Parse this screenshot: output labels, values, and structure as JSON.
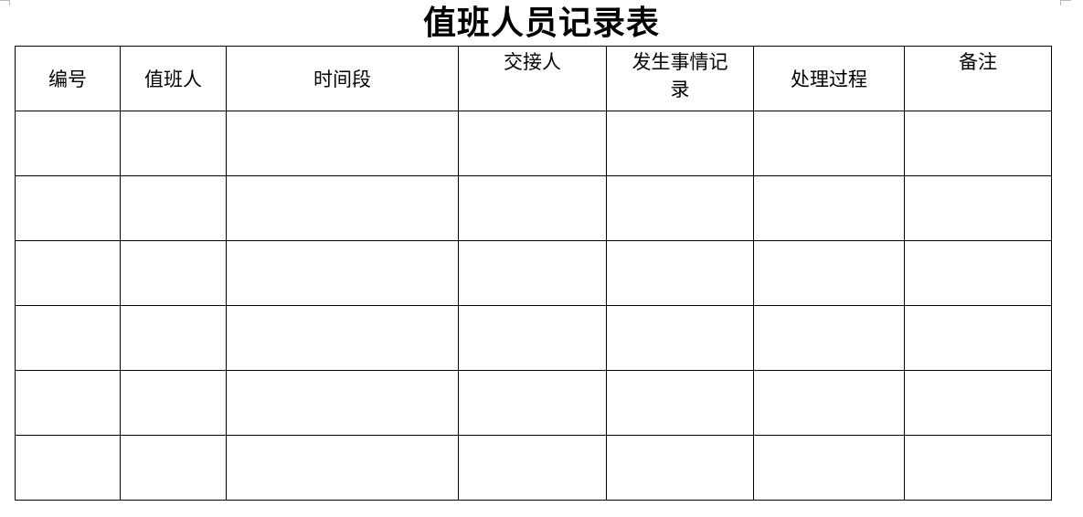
{
  "title": "值班人员记录表",
  "table": {
    "headers": [
      "编号",
      "值班人",
      "时间段",
      "交接人",
      "发生事情记录",
      "处理过程",
      "备注"
    ],
    "rows": [
      [
        "",
        "",
        "",
        "",
        "",
        "",
        ""
      ],
      [
        "",
        "",
        "",
        "",
        "",
        "",
        ""
      ],
      [
        "",
        "",
        "",
        "",
        "",
        "",
        ""
      ],
      [
        "",
        "",
        "",
        "",
        "",
        "",
        ""
      ],
      [
        "",
        "",
        "",
        "",
        "",
        "",
        ""
      ],
      [
        "",
        "",
        "",
        "",
        "",
        "",
        ""
      ]
    ]
  }
}
